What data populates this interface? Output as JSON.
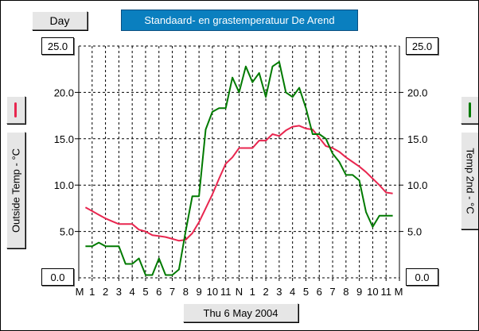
{
  "header": {
    "day_button": "Day",
    "title": "Standaard- en grastemperatuur De Arend",
    "date_button": "Thu 6 May 2004"
  },
  "axes": {
    "left_label": "Outside Temp - °C",
    "right_label": "Temp 2nd - °C",
    "left_top": "25.0",
    "left_bottom": "0.0",
    "right_top": "25.0",
    "right_bottom": "0.0"
  },
  "colors": {
    "outside_temp": "#e8264f",
    "temp_2nd": "#007a00",
    "title_bg": "#0a7fbf"
  },
  "chart_data": {
    "type": "line",
    "title": "Standaard- en grastemperatuur De Arend",
    "xlabel": "Thu 6 May 2004",
    "ylabel": "Outside Temp - °C",
    "y2label": "Temp 2nd - °C",
    "ylim": [
      0,
      25
    ],
    "yticks": [
      "5.0",
      "10.0",
      "15.0",
      "20.0"
    ],
    "xticks": [
      "M",
      "1",
      "2",
      "3",
      "4",
      "5",
      "6",
      "7",
      "8",
      "9",
      "10",
      "11",
      "N",
      "1",
      "2",
      "3",
      "4",
      "5",
      "6",
      "7",
      "8",
      "9",
      "10",
      "11",
      "M"
    ],
    "grid": true,
    "series": [
      {
        "name": "Outside Temp",
        "color": "#e8264f",
        "axis": "left",
        "x": [
          0.5,
          1,
          1.5,
          2,
          2.5,
          3,
          3.5,
          4,
          4.5,
          5,
          5.5,
          6,
          6.5,
          7,
          7.5,
          8,
          8.5,
          9,
          9.5,
          10,
          10.5,
          11,
          11.5,
          12,
          12.5,
          13,
          13.5,
          14,
          14.5,
          15,
          15.5,
          16,
          16.5,
          17,
          17.5,
          18,
          18.5,
          19,
          19.5,
          20,
          20.5,
          21,
          21.5,
          22,
          22.5,
          23,
          23.5
        ],
        "values": [
          7.6,
          7.2,
          6.8,
          6.4,
          6.1,
          5.8,
          5.8,
          5.8,
          5.2,
          5.0,
          4.6,
          4.5,
          4.4,
          4.2,
          4.0,
          4.1,
          4.8,
          6.0,
          7.5,
          9.0,
          10.7,
          12.3,
          13.0,
          14.0,
          14.0,
          14.0,
          14.8,
          14.8,
          15.5,
          15.3,
          15.9,
          16.3,
          16.4,
          16.1,
          16.0,
          15.1,
          14.2,
          14.0,
          13.6,
          13.0,
          12.5,
          12.0,
          11.4,
          10.7,
          10.0,
          9.2,
          9.1
        ]
      },
      {
        "name": "Temp 2nd",
        "color": "#007a00",
        "axis": "right",
        "x": [
          0.5,
          1,
          1.5,
          2,
          2.5,
          3,
          3.5,
          4,
          4.5,
          5,
          5.5,
          6,
          6.5,
          7,
          7.5,
          8,
          8.5,
          9,
          9.5,
          10,
          10.5,
          11,
          11.5,
          12,
          12.5,
          13,
          13.5,
          14,
          14.5,
          15,
          15.5,
          16,
          16.5,
          17,
          17.5,
          18,
          18.5,
          19,
          19.5,
          20,
          20.5,
          21,
          21.5,
          22,
          22.5,
          23,
          23.5
        ],
        "values": [
          3.4,
          3.4,
          3.8,
          3.4,
          3.4,
          3.4,
          1.5,
          1.5,
          2.1,
          0.3,
          0.3,
          2.1,
          0.3,
          0.3,
          0.9,
          5.0,
          8.8,
          8.8,
          16.0,
          17.9,
          18.3,
          18.3,
          21.6,
          20.0,
          22.8,
          21.1,
          22.1,
          19.5,
          22.8,
          23.3,
          20.0,
          19.5,
          20.5,
          18.3,
          15.5,
          15.5,
          15.0,
          13.4,
          12.5,
          11.1,
          11.1,
          10.5,
          7.1,
          5.5,
          6.7,
          6.7,
          6.7
        ]
      }
    ]
  }
}
